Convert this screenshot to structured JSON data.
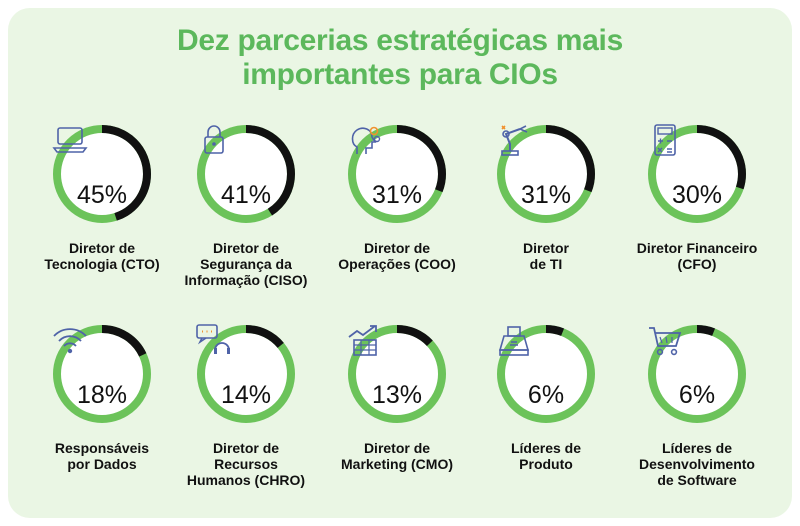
{
  "title_lines": [
    "Dez parcerias estratégicas mais",
    "importantes para CIOs"
  ],
  "colors": {
    "green": "#6cc35a",
    "dark": "#111111",
    "panel": "#eaf6e4",
    "title": "#5cb85c"
  },
  "items": [
    {
      "value": 45,
      "percent": "45%",
      "label": [
        "Diretor de",
        "Tecnologia (CTO)"
      ],
      "icon": "laptop-icon"
    },
    {
      "value": 41,
      "percent": "41%",
      "label": [
        "Diretor de",
        "Segurança da",
        "Informação (CISO)"
      ],
      "icon": "lock-icon"
    },
    {
      "value": 31,
      "percent": "31%",
      "label": [
        "Diretor de",
        "Operações (COO)"
      ],
      "icon": "head-gears-icon"
    },
    {
      "value": 31,
      "percent": "31%",
      "label": [
        "Diretor",
        "de TI"
      ],
      "icon": "robot-arm-icon"
    },
    {
      "value": 30,
      "percent": "30%",
      "label": [
        "Diretor Financeiro",
        "(CFO)"
      ],
      "icon": "calculator-icon"
    },
    {
      "value": 18,
      "percent": "18%",
      "label": [
        "Responsáveis",
        "por Dados"
      ],
      "icon": "wifi-icon"
    },
    {
      "value": 14,
      "percent": "14%",
      "label": [
        "Diretor de",
        "Recursos",
        "Humanos (CHRO)"
      ],
      "icon": "headset-chat-icon"
    },
    {
      "value": 13,
      "percent": "13%",
      "label": [
        "Diretor de",
        "Marketing (CMO)"
      ],
      "icon": "growth-chart-icon"
    },
    {
      "value": 6,
      "percent": "6%",
      "label": [
        "Líderes de",
        "Produto"
      ],
      "icon": "box-icon"
    },
    {
      "value": 6,
      "percent": "6%",
      "label": [
        "Líderes de",
        "Desenvolvimento",
        "de Software"
      ],
      "icon": "cart-icon"
    }
  ]
}
